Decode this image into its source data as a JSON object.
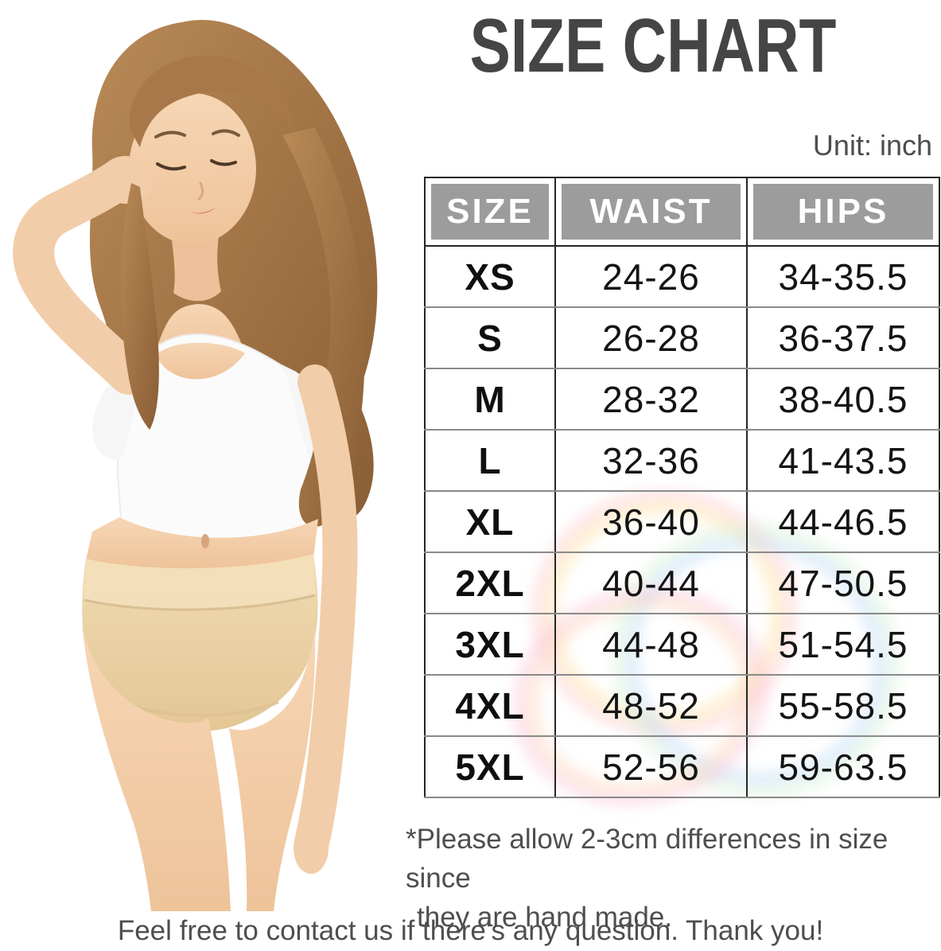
{
  "page": {
    "title": "SIZE CHART",
    "unit_label": "Unit: inch",
    "notes": [
      "*Please allow 2-3cm differences in size since",
      "they are hand made."
    ],
    "footer": "Feel free to contact us if there's any question. Thank you!"
  },
  "chart_data": {
    "type": "table",
    "title": "SIZE CHART",
    "unit": "inch",
    "columns": [
      "SIZE",
      "WAIST",
      "HIPS"
    ],
    "rows": [
      [
        "XS",
        "24-26",
        "34-35.5"
      ],
      [
        "S",
        "26-28",
        "36-37.5"
      ],
      [
        "M",
        "28-32",
        "38-40.5"
      ],
      [
        "L",
        "32-36",
        "41-43.5"
      ],
      [
        "XL",
        "36-40",
        "44-46.5"
      ],
      [
        "2XL",
        "40-44",
        "47-50.5"
      ],
      [
        "3XL",
        "44-48",
        "51-54.5"
      ],
      [
        "4XL",
        "48-52",
        "55-58.5"
      ],
      [
        "5XL",
        "52-56",
        "59-63.5"
      ]
    ]
  },
  "colors": {
    "header_bg": "#9c9c9c",
    "header_text": "#ffffff",
    "title_text": "#454545",
    "cell_text": "#141414",
    "note_text": "#4e4e4e",
    "border_dark": "#262626",
    "border_row": "#8a8a8a",
    "briefs_beige": "#ecd4aa",
    "skin": "#f2cda9",
    "hair_brown": "#a9784a"
  },
  "photo": {
    "description": "model wearing white crop top and beige high-waist briefs"
  }
}
